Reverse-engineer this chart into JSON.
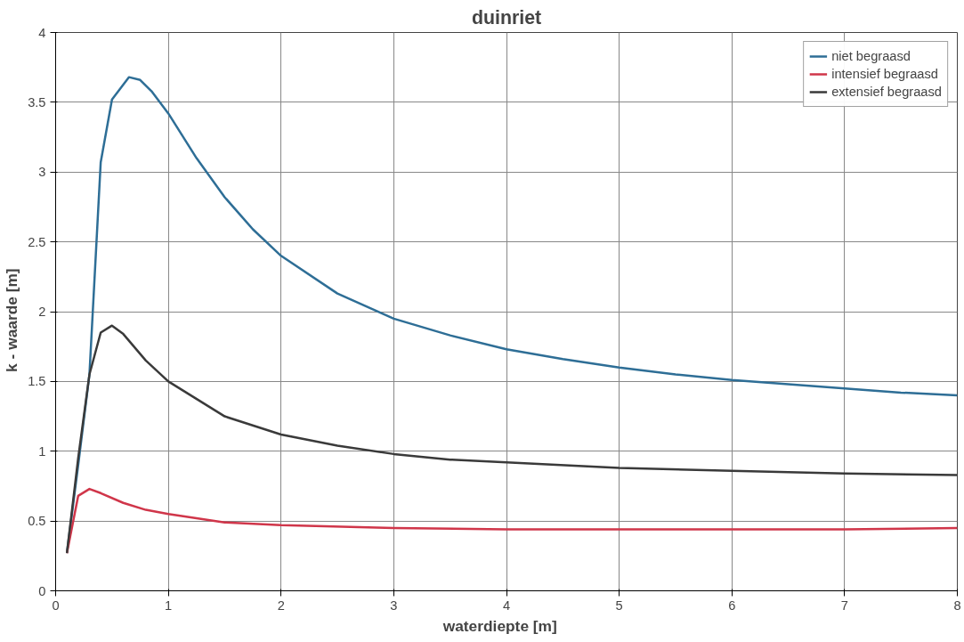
{
  "chart_data": {
    "type": "line",
    "title": "duinriet",
    "xlabel": "waterdiepte    [m]",
    "ylabel": "k - waarde     [m]",
    "xlim": [
      0,
      8
    ],
    "xticks": [
      0,
      1,
      2,
      3,
      4,
      5,
      6,
      7,
      8
    ],
    "ylim": [
      0,
      4
    ],
    "yticks": [
      0,
      0.5,
      1,
      1.5,
      2,
      2.5,
      3,
      3.5,
      4
    ],
    "grid": true,
    "legend": "top right",
    "series": [
      {
        "name": "niet begraasd",
        "color": "#2e6e96",
        "x": [
          0.1,
          0.2,
          0.3,
          0.4,
          0.5,
          0.65,
          0.75,
          0.85,
          1.0,
          1.25,
          1.5,
          1.75,
          2.0,
          2.5,
          3.0,
          3.5,
          4.0,
          4.5,
          5.0,
          5.5,
          6.0,
          6.5,
          7.0,
          7.5,
          8.0
        ],
        "values": [
          0.27,
          0.9,
          1.55,
          3.07,
          3.52,
          3.68,
          3.66,
          3.58,
          3.42,
          3.1,
          2.82,
          2.59,
          2.4,
          2.13,
          1.95,
          1.83,
          1.73,
          1.66,
          1.6,
          1.55,
          1.51,
          1.48,
          1.45,
          1.42,
          1.4
        ]
      },
      {
        "name": "intensief begraasd",
        "color": "#d0364a",
        "x": [
          0.1,
          0.2,
          0.3,
          0.4,
          0.6,
          0.8,
          1.0,
          1.5,
          2.0,
          3.0,
          4.0,
          5.0,
          6.0,
          7.0,
          8.0
        ],
        "values": [
          0.27,
          0.68,
          0.73,
          0.7,
          0.63,
          0.58,
          0.55,
          0.49,
          0.47,
          0.45,
          0.44,
          0.44,
          0.44,
          0.44,
          0.45
        ]
      },
      {
        "name": "extensief begraasd",
        "color": "#3a3a3a",
        "x": [
          0.1,
          0.2,
          0.3,
          0.4,
          0.5,
          0.6,
          0.8,
          1.0,
          1.5,
          2.0,
          2.5,
          3.0,
          3.5,
          4.0,
          5.0,
          6.0,
          7.0,
          8.0
        ],
        "values": [
          0.27,
          0.95,
          1.55,
          1.85,
          1.9,
          1.84,
          1.65,
          1.5,
          1.25,
          1.12,
          1.04,
          0.98,
          0.94,
          0.92,
          0.88,
          0.86,
          0.84,
          0.83
        ]
      }
    ]
  }
}
